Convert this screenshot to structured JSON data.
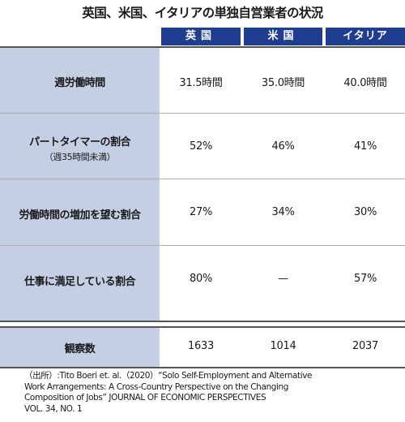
{
  "title": "英国、米国、イタリアの単独自営業者の状況",
  "columns": [
    "英国",
    "米国",
    "イタリア"
  ],
  "colors": {
    "header_bg": "#1f3e8f",
    "label_bg": "#c5cfe4"
  },
  "rows": [
    {
      "label": "週労働時間",
      "sublabel": "",
      "values": [
        "31.5時間",
        "35.0時間",
        "40.0時間"
      ]
    },
    {
      "label": "パートタイマーの割合",
      "sublabel": "（週35時間未満）",
      "values": [
        "52%",
        "46%",
        "41%"
      ]
    },
    {
      "label": "労働時間の増加を望む割合",
      "sublabel": "",
      "values": [
        "27%",
        "34%",
        "30%"
      ]
    },
    {
      "label": "仕事に満足している割合",
      "sublabel": "",
      "values": [
        "80%",
        "—",
        "57%"
      ]
    }
  ],
  "total_row": {
    "label": "観察数",
    "values": [
      "1633",
      "1014",
      "2037"
    ]
  },
  "source_lines": [
    "（出所）:Tito Boeri et. al.（2020）“Solo Self-Employment and Alternative",
    "Work Arrangements: A Cross-Country Perspective on the Changing",
    "Composition of Jobs” JOURNAL OF ECONOMIC PERSPECTIVES",
    "VOL. 34, NO. 1"
  ]
}
